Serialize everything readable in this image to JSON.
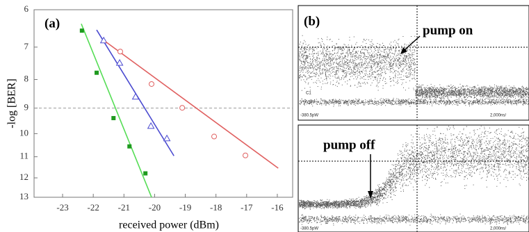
{
  "chart_data": {
    "type": "scatter",
    "label": "(a)",
    "ylabel": "-log [BER]",
    "xlabel": "received power (dBm)",
    "xlim": [
      -23.93,
      -15.5
    ],
    "ylim": [
      6,
      13
    ],
    "y_scale": "log",
    "y_inverted": true,
    "xticks": [
      -23,
      -22,
      -21,
      -20,
      -19,
      -18,
      -17,
      -16
    ],
    "yticks": [
      6,
      7,
      8,
      9,
      10,
      11,
      12,
      13
    ],
    "reference_line": 9,
    "series": [
      {
        "color": "#1f9a1f",
        "line_color": "#55dd55",
        "marker": "square",
        "x": [
          -22.37,
          -21.89,
          -21.34,
          -20.82,
          -20.3
        ],
        "values": [
          6.54,
          7.78,
          9.38,
          10.54,
          11.78
        ],
        "fit_x": [
          -22.39,
          -20.1
        ],
        "fit_values": [
          6.36,
          13
        ]
      },
      {
        "color": "#4a4ad0",
        "line_color": "#4a4ad0",
        "marker": "triangle",
        "x": [
          -21.66,
          -21.14,
          -20.62,
          -20.12,
          -19.6
        ],
        "values": [
          6.81,
          7.47,
          8.59,
          9.69,
          10.2
        ],
        "fit_x": [
          -21.89,
          -19.37
        ],
        "fit_values": [
          6.52,
          10.96
        ]
      },
      {
        "color": "#e06060",
        "line_color": "#e06060",
        "marker": "circle",
        "x": [
          -21.12,
          -20.1,
          -19.1,
          -18.06,
          -17.04
        ],
        "values": [
          7.13,
          8.15,
          8.99,
          10.12,
          10.94
        ],
        "fit_x": [
          -21.59,
          -15.97
        ],
        "fit_values": [
          6.85,
          11.53
        ]
      }
    ]
  },
  "panel_b": {
    "label": "(b)",
    "top": {
      "annotation": "pump on",
      "channel": "C1",
      "level": "-380.5pW",
      "timebase": "2,000ns/"
    },
    "bottom": {
      "annotation": "pump off",
      "level": "-380.5pW",
      "timebase": "2,000ns/"
    }
  }
}
